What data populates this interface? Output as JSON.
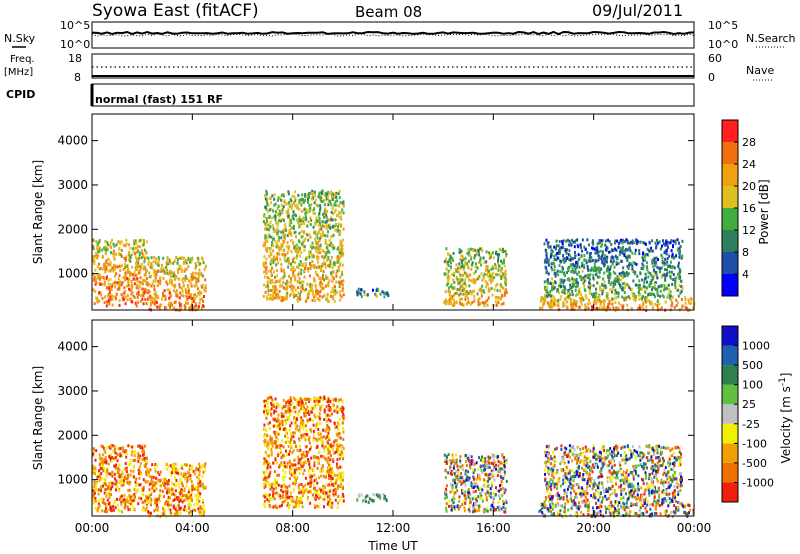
{
  "header": {
    "station": "Syowa East (fitACF)",
    "beam": "Beam 08",
    "date": "09/Jul/2011"
  },
  "top_panel": {
    "left_label": "N.Sky",
    "right_label": "N.Search",
    "left_ticks": [
      "10^5",
      "10^0"
    ],
    "right_ticks": [
      "10^5",
      "10^0"
    ]
  },
  "freq_panel": {
    "left_label_line1": "Freq.",
    "left_label_line2": "[MHz]",
    "right_label": "Nave",
    "left_ticks": [
      "18",
      "8"
    ],
    "right_ticks": [
      "60",
      "0"
    ]
  },
  "cpid": {
    "label": "CPID",
    "mode_text": "normal (fast) 151 RF"
  },
  "colors": {
    "power_scale": [
      "#0000ff",
      "#1e4fa8",
      "#2f7f5f",
      "#3fae3f",
      "#e0c020",
      "#f0a010",
      "#f07010",
      "#ff2020"
    ],
    "velocity_scale": [
      "#1010c8",
      "#2060b0",
      "#2e8050",
      "#60c040",
      "#c0c0c0",
      "#f0f000",
      "#f0a000",
      "#f07000",
      "#f02010"
    ]
  },
  "chart_data": [
    {
      "type": "heatmap",
      "title": "",
      "xlabel": "",
      "ylabel": "Slant Range [km]",
      "x_ticks": [
        "00:00",
        "04:00",
        "08:00",
        "12:00",
        "16:00",
        "20:00",
        "00:00"
      ],
      "y_ticks": [
        "1000",
        "2000",
        "3000",
        "4000"
      ],
      "xlim": [
        0,
        24
      ],
      "ylim": [
        180,
        4600
      ],
      "colorbar": {
        "label": "Power [dB]",
        "ticks": [
          "4",
          "8",
          "12",
          "16",
          "20",
          "24",
          "28"
        ]
      },
      "regions": [
        {
          "t": [
            0.0,
            2.2
          ],
          "range": [
            300,
            1800
          ],
          "value": "high"
        },
        {
          "t": [
            2.2,
            4.5
          ],
          "range": [
            200,
            1400
          ],
          "value": "high"
        },
        {
          "t": [
            6.8,
            10.0
          ],
          "range": [
            400,
            2900
          ],
          "value": "medium"
        },
        {
          "t": [
            10.5,
            11.8
          ],
          "range": [
            500,
            700
          ],
          "value": "low"
        },
        {
          "t": [
            14.0,
            16.5
          ],
          "range": [
            300,
            1600
          ],
          "value": "medium"
        },
        {
          "t": [
            17.8,
            24.0
          ],
          "range": [
            200,
            500
          ],
          "value": "high"
        },
        {
          "t": [
            18.0,
            23.5
          ],
          "range": [
            500,
            1800
          ],
          "value": "low"
        }
      ]
    },
    {
      "type": "heatmap",
      "title": "",
      "xlabel": "Time UT",
      "ylabel": "Slant Range [km]",
      "x_ticks": [
        "00:00",
        "04:00",
        "08:00",
        "12:00",
        "16:00",
        "20:00",
        "00:00"
      ],
      "y_ticks": [
        "1000",
        "2000",
        "3000",
        "4000"
      ],
      "xlim": [
        0,
        24
      ],
      "ylim": [
        180,
        4600
      ],
      "colorbar": {
        "label": "Velocity [m s^-1]",
        "ticks": [
          "1000",
          "500",
          "100",
          "25",
          "-25",
          "-100",
          "-500",
          "-1000"
        ]
      },
      "regions": [
        {
          "t": [
            0.0,
            2.2
          ],
          "range": [
            300,
            1800
          ],
          "value": "negative"
        },
        {
          "t": [
            2.2,
            4.5
          ],
          "range": [
            200,
            1400
          ],
          "value": "negative"
        },
        {
          "t": [
            6.8,
            10.0
          ],
          "range": [
            400,
            2900
          ],
          "value": "negative"
        },
        {
          "t": [
            10.5,
            11.8
          ],
          "range": [
            500,
            700
          ],
          "value": "positive"
        },
        {
          "t": [
            14.0,
            16.5
          ],
          "range": [
            300,
            1600
          ],
          "value": "mixed"
        },
        {
          "t": [
            17.8,
            24.0
          ],
          "range": [
            200,
            500
          ],
          "value": "mixed"
        },
        {
          "t": [
            18.0,
            23.5
          ],
          "range": [
            500,
            1800
          ],
          "value": "mixed"
        }
      ]
    }
  ]
}
